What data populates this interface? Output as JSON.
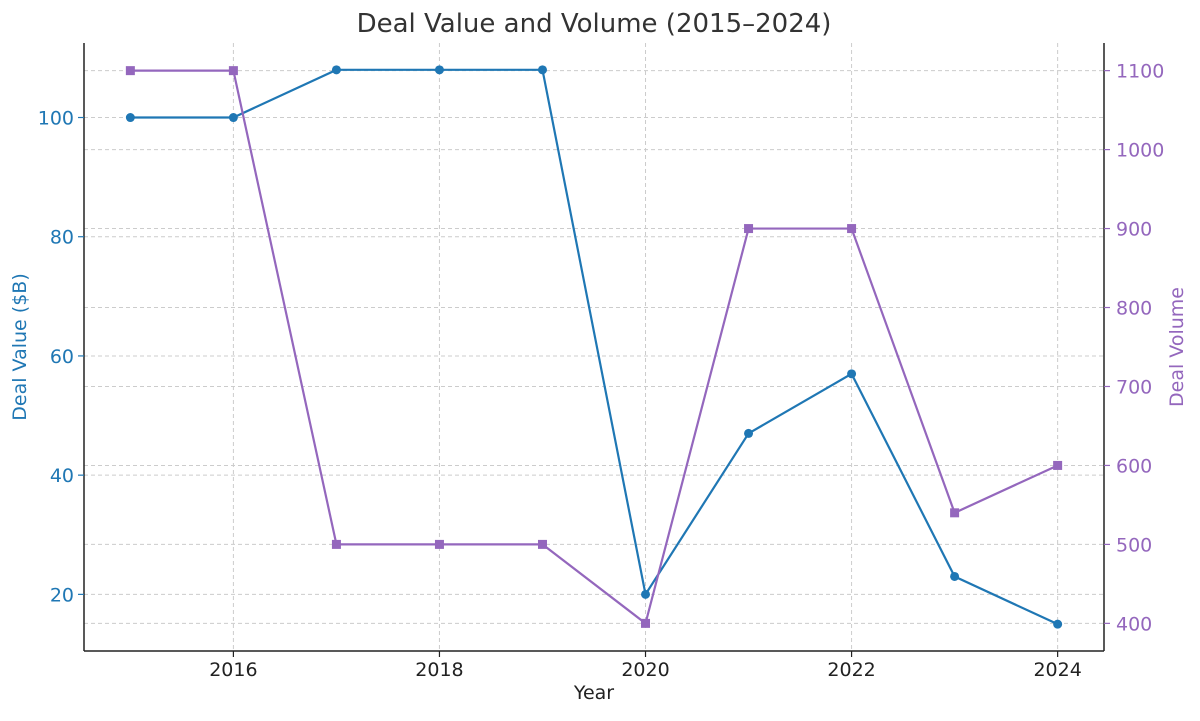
{
  "chart_data": {
    "type": "line",
    "title": "Deal Value and Volume (2015–2024)",
    "xlabel": "Year",
    "ylabel": "Deal Value ($B)",
    "y2label": "Deal Volume",
    "x": [
      2015,
      2016,
      2017,
      2018,
      2019,
      2020,
      2021,
      2022,
      2023,
      2024
    ],
    "xticks": [
      2016,
      2018,
      2020,
      2022,
      2024
    ],
    "xlim": [
      2014.55,
      2024.45
    ],
    "ylim": [
      10.5,
      112.5
    ],
    "yticks": [
      20,
      40,
      60,
      80,
      100
    ],
    "y2lim": [
      365,
      1135
    ],
    "y2ticks": [
      400,
      500,
      600,
      700,
      800,
      900,
      1000,
      1100
    ],
    "grid": true,
    "series": [
      {
        "axis": "left",
        "marker": "circle",
        "color": "#1f77b4",
        "values": [
          100,
          100,
          108,
          108,
          108,
          20,
          47,
          57,
          23,
          15
        ]
      },
      {
        "axis": "right",
        "marker": "square",
        "color": "#9467bd",
        "values": [
          1100,
          1100,
          500,
          500,
          500,
          400,
          900,
          900,
          540,
          600
        ]
      }
    ]
  }
}
